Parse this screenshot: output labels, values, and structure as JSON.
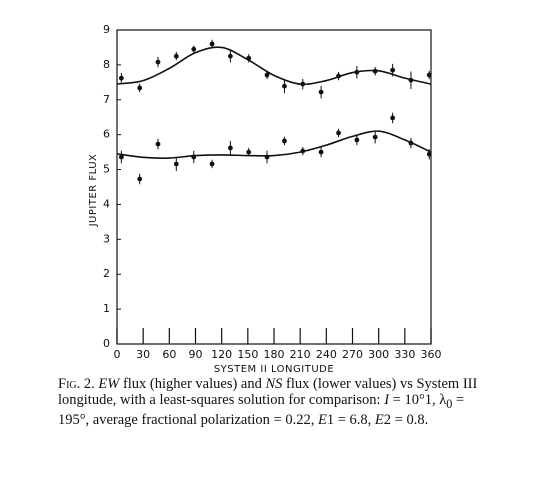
{
  "chart_data": {
    "type": "scatter",
    "xlabel": "SYSTEM II LONGITUDE",
    "ylabel": "JUPITER FLUX",
    "xlim": [
      0,
      360
    ],
    "ylim": [
      0,
      9
    ],
    "xticks": [
      0,
      30,
      60,
      90,
      120,
      150,
      180,
      210,
      240,
      270,
      300,
      330,
      360
    ],
    "yticks": [
      0,
      1,
      2,
      3,
      4,
      5,
      6,
      7,
      8,
      9
    ],
    "series": [
      {
        "type": "scatter",
        "color": "#111",
        "x": [
          5,
          26,
          47,
          68,
          88,
          109,
          130,
          151,
          172,
          192,
          213,
          234,
          254,
          275,
          296,
          316,
          337,
          358
        ],
        "values": [
          7.62,
          7.34,
          8.08,
          8.25,
          8.45,
          8.6,
          8.25,
          8.19,
          7.71,
          7.39,
          7.45,
          7.22,
          7.68,
          7.79,
          7.82,
          7.85,
          7.56,
          7.71
        ],
        "errors": [
          0.15,
          0.12,
          0.15,
          0.12,
          0.1,
          0.12,
          0.18,
          0.12,
          0.12,
          0.2,
          0.15,
          0.18,
          0.12,
          0.18,
          0.12,
          0.18,
          0.25,
          0.12
        ]
      },
      {
        "type": "scatter",
        "color": "#111",
        "x": [
          5,
          26,
          47,
          68,
          88,
          109,
          130,
          151,
          172,
          192,
          213,
          234,
          254,
          275,
          296,
          316,
          337,
          358
        ],
        "values": [
          5.36,
          4.73,
          5.73,
          5.16,
          5.36,
          5.16,
          5.62,
          5.5,
          5.36,
          5.82,
          5.53,
          5.5,
          6.05,
          5.85,
          5.93,
          6.48,
          5.76,
          5.44
        ],
        "errors": [
          0.18,
          0.15,
          0.15,
          0.2,
          0.18,
          0.12,
          0.2,
          0.12,
          0.18,
          0.12,
          0.12,
          0.15,
          0.12,
          0.15,
          0.18,
          0.15,
          0.15,
          0.15
        ]
      },
      {
        "type": "line",
        "color": "#111",
        "x": [
          0,
          30,
          60,
          90,
          120,
          150,
          180,
          210,
          240,
          270,
          300,
          330,
          360
        ],
        "values": [
          7.45,
          7.55,
          7.9,
          8.35,
          8.5,
          8.15,
          7.7,
          7.45,
          7.55,
          7.78,
          7.83,
          7.62,
          7.45
        ]
      },
      {
        "type": "line",
        "color": "#111",
        "x": [
          0,
          30,
          60,
          90,
          120,
          150,
          180,
          210,
          240,
          270,
          300,
          330,
          360
        ],
        "values": [
          5.45,
          5.35,
          5.33,
          5.4,
          5.42,
          5.4,
          5.4,
          5.5,
          5.7,
          5.95,
          6.1,
          5.85,
          5.5
        ]
      }
    ],
    "caption": [
      "Fig. 2.",
      " ",
      "EW",
      " flux (higher values) and ",
      "NS",
      " flux (lower values) vs System III longitude, with a least-squares solution for comparison: ",
      "I",
      " = 10°1, λ",
      "0",
      " = 195°, average fractional polarization = 0.22, ",
      "E",
      "1 = 6.8, ",
      "E",
      "2 = 0.8."
    ]
  }
}
